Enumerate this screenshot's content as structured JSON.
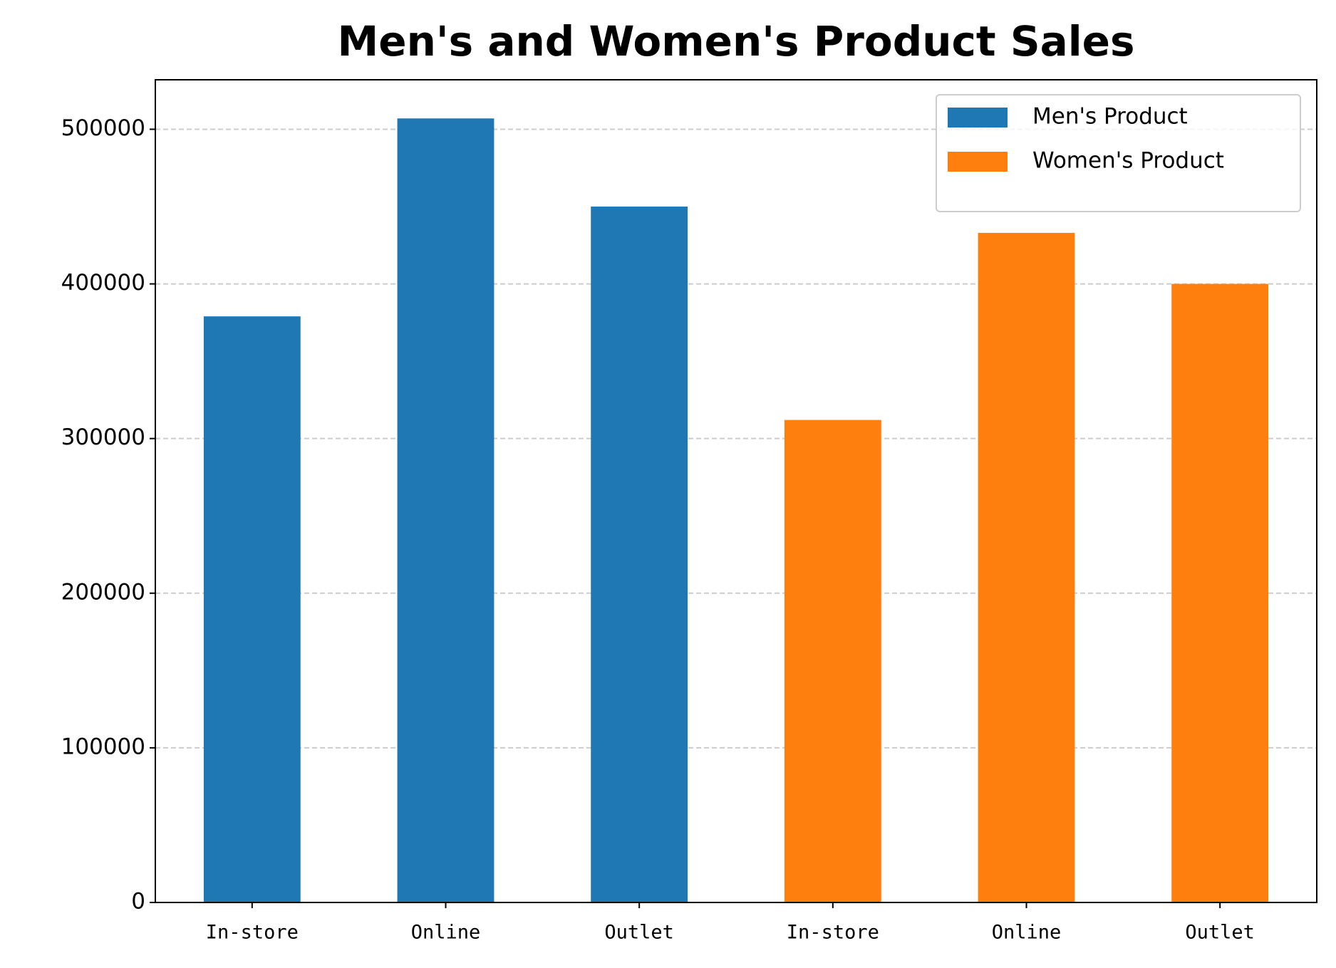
{
  "chart_data": {
    "type": "bar",
    "title": "Men's and Women's Product Sales",
    "categories": [
      "In-store",
      "Online",
      "Outlet",
      "In-store",
      "Online",
      "Outlet"
    ],
    "series": [
      {
        "name": "Men's Product",
        "color": "#1f77b4",
        "values": [
          379000,
          507000,
          450000,
          null,
          null,
          null
        ]
      },
      {
        "name": "Women's Product",
        "color": "#ff7f0e",
        "values": [
          null,
          null,
          null,
          312000,
          433000,
          400000
        ]
      }
    ],
    "ylim": [
      0,
      532000
    ],
    "yticks": [
      0,
      100000,
      200000,
      300000,
      400000,
      500000
    ],
    "grid": true,
    "legend": "upper right"
  }
}
